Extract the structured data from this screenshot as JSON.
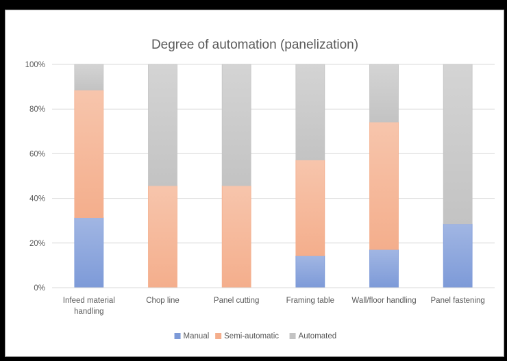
{
  "chart_data": {
    "type": "bar",
    "stacked": true,
    "title": "Degree of automation (panelization)",
    "categories": [
      [
        "Infeed material",
        "handling"
      ],
      [
        "Chop line"
      ],
      [
        "Panel cutting"
      ],
      [
        "Framing table"
      ],
      [
        "Wall/floor handling"
      ],
      [
        "Panel fastening"
      ]
    ],
    "series": [
      {
        "name": "Manual",
        "values": [
          31.4,
          0,
          0,
          14.3,
          17.1,
          28.6
        ],
        "color": "#7d9ad8"
      },
      {
        "name": "Semi-automatic",
        "values": [
          57.1,
          45.7,
          45.7,
          42.9,
          57.1,
          0
        ],
        "color": "#f4ae8c"
      },
      {
        "name": "Automated",
        "values": [
          11.5,
          54.3,
          54.3,
          42.8,
          25.8,
          71.4
        ],
        "color": "#c3c3c3"
      }
    ],
    "ylim": [
      0,
      100
    ],
    "yticks": [
      "0%",
      "20%",
      "40%",
      "60%",
      "80%",
      "100%"
    ],
    "grid": true,
    "legend": "bottom"
  }
}
